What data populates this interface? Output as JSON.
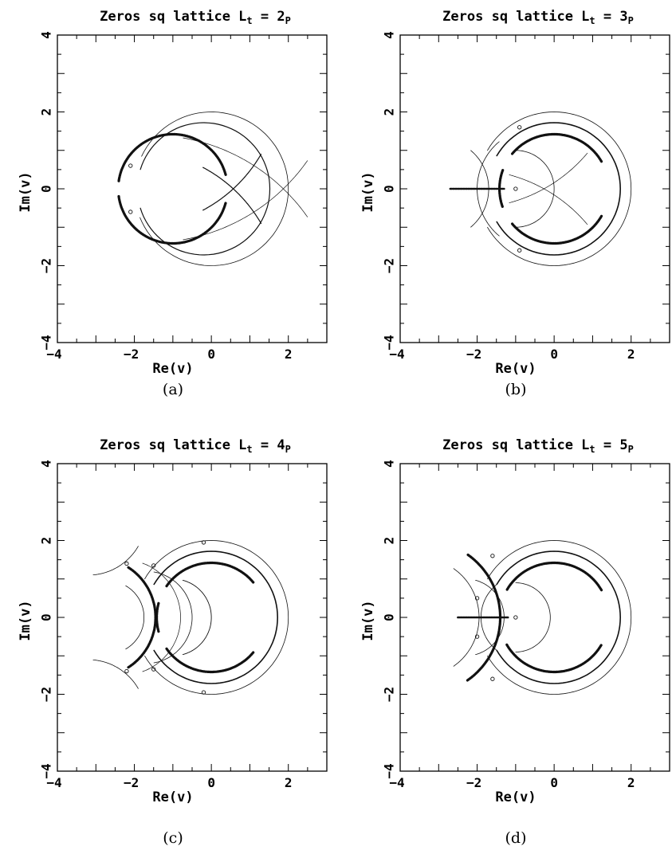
{
  "chart_data": [
    {
      "type": "scatter",
      "panel": "(a)",
      "title": {
        "main": "Zeros sq lattice L",
        "sub": "t",
        "eq": " = 2",
        "sub2": "P"
      },
      "xlabel": "Re(v)",
      "ylabel": "Im(v)",
      "xlim": [
        -4,
        3
      ],
      "ylim": [
        -4,
        4
      ],
      "xticks": [
        -4,
        -2,
        0,
        2
      ],
      "yticks": [
        -4,
        -2,
        0,
        2,
        4
      ],
      "curves": [
        {
          "type": "arc",
          "cx": -1,
          "cy": 0,
          "r": 1.42,
          "from": -172,
          "to": -15,
          "width": 3.2
        },
        {
          "type": "arc",
          "cx": -1,
          "cy": 0,
          "r": 1.42,
          "from": 15,
          "to": 172,
          "width": 3.2
        },
        {
          "type": "arc",
          "cx": -0.2,
          "cy": 0,
          "r": 1.72,
          "from": -163,
          "to": 163,
          "width": 1.2
        },
        {
          "type": "arc",
          "cx": 0,
          "cy": 0,
          "r": 2.0,
          "from": -158,
          "to": 155,
          "width": 0.8
        },
        {
          "type": "arc",
          "cx": -2.0,
          "cy": -2.8,
          "r": 3.8,
          "from": 30,
          "to": 62,
          "width": 1.2
        },
        {
          "type": "arc",
          "cx": -2.0,
          "cy": 2.8,
          "r": 3.8,
          "from": -62,
          "to": -30,
          "width": 1.2
        },
        {
          "type": "arc",
          "cx": -1.6,
          "cy": -3.6,
          "r": 5.0,
          "from": 35,
          "to": 80,
          "width": 0.7
        },
        {
          "type": "arc",
          "cx": -1.6,
          "cy": 3.6,
          "r": 5.0,
          "from": -80,
          "to": -35,
          "width": 0.7
        }
      ],
      "points": [
        [
          -2.1,
          -0.6
        ],
        [
          -2.1,
          0.6
        ]
      ]
    },
    {
      "type": "scatter",
      "panel": "(b)",
      "title": {
        "main": "Zeros sq lattice L",
        "sub": "t",
        "eq": " = 3",
        "sub2": "P"
      },
      "xlabel": "Re(v)",
      "ylabel": "Im(v)",
      "xlim": [
        -4,
        3
      ],
      "ylim": [
        -4,
        4
      ],
      "xticks": [
        -4,
        -2,
        0,
        2
      ],
      "yticks": [
        -4,
        -2,
        0,
        2,
        4
      ],
      "curves": [
        {
          "type": "arc",
          "cx": 0,
          "cy": 0,
          "r": 1.42,
          "from": -140,
          "to": -30,
          "width": 3.2
        },
        {
          "type": "arc",
          "cx": 0,
          "cy": 0,
          "r": 1.42,
          "from": 30,
          "to": 140,
          "width": 3.2
        },
        {
          "type": "arc",
          "cx": 0,
          "cy": 0,
          "r": 1.42,
          "from": 160,
          "to": 200,
          "width": 3.2
        },
        {
          "type": "arc",
          "cx": 0,
          "cy": 0,
          "r": 1.72,
          "from": -150,
          "to": 150,
          "width": 1.6
        },
        {
          "type": "arc",
          "cx": 0,
          "cy": 0,
          "r": 2.0,
          "from": -150,
          "to": 150,
          "width": 0.8
        },
        {
          "type": "arc",
          "cx": -1.0,
          "cy": 0,
          "r": 1.0,
          "from": -90,
          "to": 90,
          "width": 0.8
        },
        {
          "type": "arc",
          "cx": -3.0,
          "cy": 0,
          "r": 1.3,
          "from": -50,
          "to": 50,
          "width": 0.8
        },
        {
          "type": "arc",
          "cx": -0.4,
          "cy": 0,
          "r": 1.6,
          "from": 130,
          "to": 230,
          "width": 0.8
        },
        {
          "type": "arc",
          "cx": -2.2,
          "cy": -3.5,
          "r": 4.0,
          "from": 40,
          "to": 75,
          "width": 0.7
        },
        {
          "type": "arc",
          "cx": -2.2,
          "cy": 3.5,
          "r": 4.0,
          "from": -75,
          "to": -40,
          "width": 0.7
        },
        {
          "type": "line",
          "x": [
            -2.7,
            -1.3
          ],
          "y": [
            0,
            0
          ],
          "width": 2.5
        }
      ],
      "points": [
        [
          -1.0,
          0
        ],
        [
          -0.9,
          1.6
        ],
        [
          -0.9,
          -1.6
        ]
      ]
    },
    {
      "type": "scatter",
      "panel": "(c)",
      "title": {
        "main": "Zeros sq lattice L",
        "sub": "t",
        "eq": " = 4",
        "sub2": "P"
      },
      "xlabel": "Re(v)",
      "ylabel": "Im(v)",
      "xlim": [
        -4,
        3
      ],
      "ylim": [
        -4,
        4
      ],
      "xticks": [
        -4,
        -2,
        0,
        2
      ],
      "yticks": [
        -4,
        -2,
        0,
        2,
        4
      ],
      "curves": [
        {
          "type": "arc",
          "cx": 0,
          "cy": 0,
          "r": 1.42,
          "from": -145,
          "to": -40,
          "width": 3.2
        },
        {
          "type": "arc",
          "cx": 0,
          "cy": 0,
          "r": 1.42,
          "from": 40,
          "to": 145,
          "width": 3.2
        },
        {
          "type": "arc",
          "cx": 0,
          "cy": 0,
          "r": 1.42,
          "from": 165,
          "to": 195,
          "width": 3.2
        },
        {
          "type": "arc",
          "cx": 0,
          "cy": 0,
          "r": 1.72,
          "from": -150,
          "to": 150,
          "width": 1.6
        },
        {
          "type": "arc",
          "cx": 0,
          "cy": 0,
          "r": 2.0,
          "from": -150,
          "to": 150,
          "width": 0.8
        },
        {
          "type": "arc",
          "cx": -3.0,
          "cy": 0,
          "r": 1.55,
          "from": -57,
          "to": 57,
          "width": 3.2
        },
        {
          "type": "arc",
          "cx": -1.0,
          "cy": 0,
          "r": 1.0,
          "from": -75,
          "to": 75,
          "width": 0.9
        },
        {
          "type": "arc",
          "cx": -2.7,
          "cy": 0,
          "r": 0.95,
          "from": -60,
          "to": 60,
          "width": 0.8
        },
        {
          "type": "arc",
          "cx": -1.7,
          "cy": 0,
          "r": 1.2,
          "from": -80,
          "to": 80,
          "width": 0.8
        },
        {
          "type": "arc",
          "cx": -2.3,
          "cy": 0,
          "r": 1.5,
          "from": -70,
          "to": 70,
          "width": 0.7
        },
        {
          "type": "arc",
          "cx": -3.2,
          "cy": -2.6,
          "r": 1.5,
          "from": 30,
          "to": 85,
          "width": 0.8
        },
        {
          "type": "arc",
          "cx": -3.2,
          "cy": 2.6,
          "r": 1.5,
          "from": -85,
          "to": -30,
          "width": 0.8
        }
      ],
      "points": [
        [
          -2.2,
          1.4
        ],
        [
          -2.2,
          -1.4
        ],
        [
          -1.5,
          1.35
        ],
        [
          -1.5,
          -1.35
        ],
        [
          -0.2,
          1.95
        ],
        [
          -0.2,
          -1.95
        ]
      ]
    },
    {
      "type": "scatter",
      "panel": "(d)",
      "title": {
        "main": "Zeros sq lattice L",
        "sub": "t",
        "eq": " = 5",
        "sub2": "P"
      },
      "xlabel": "Re(v)",
      "ylabel": "Im(v)",
      "xlim": [
        -4,
        3
      ],
      "ylim": [
        -4,
        4
      ],
      "xticks": [
        -4,
        -2,
        0,
        2
      ],
      "yticks": [
        -4,
        -2,
        0,
        2,
        4
      ],
      "curves": [
        {
          "type": "arc",
          "cx": 0,
          "cy": 0,
          "r": 1.42,
          "from": -150,
          "to": -30,
          "width": 3.2
        },
        {
          "type": "arc",
          "cx": 0,
          "cy": 0,
          "r": 1.42,
          "from": 30,
          "to": 150,
          "width": 3.2
        },
        {
          "type": "arc",
          "cx": 0,
          "cy": 0,
          "r": 1.72,
          "from": -150,
          "to": 150,
          "width": 1.6
        },
        {
          "type": "arc",
          "cx": 0,
          "cy": 0,
          "r": 2.0,
          "from": -150,
          "to": 150,
          "width": 0.8
        },
        {
          "type": "arc",
          "cx": -3.4,
          "cy": 0,
          "r": 2.0,
          "from": -55,
          "to": 55,
          "width": 3.2
        },
        {
          "type": "arc",
          "cx": -3.5,
          "cy": 0,
          "r": 1.55,
          "from": -55,
          "to": 55,
          "width": 0.8
        },
        {
          "type": "arc",
          "cx": -0.8,
          "cy": 0,
          "r": 1.1,
          "from": 130,
          "to": 230,
          "width": 0.8
        },
        {
          "type": "arc",
          "cx": -2.3,
          "cy": 0,
          "r": 1.0,
          "from": -75,
          "to": 75,
          "width": 0.8
        },
        {
          "type": "arc",
          "cx": -1.0,
          "cy": 0,
          "r": 0.9,
          "from": -90,
          "to": 90,
          "width": 0.8
        },
        {
          "type": "line",
          "x": [
            -2.5,
            -1.2
          ],
          "y": [
            0,
            0
          ],
          "width": 2.6
        }
      ],
      "points": [
        [
          -1.6,
          1.6
        ],
        [
          -1.6,
          -1.6
        ],
        [
          -2.0,
          0.5
        ],
        [
          -2.0,
          -0.5
        ],
        [
          -1.0,
          0
        ]
      ]
    }
  ]
}
